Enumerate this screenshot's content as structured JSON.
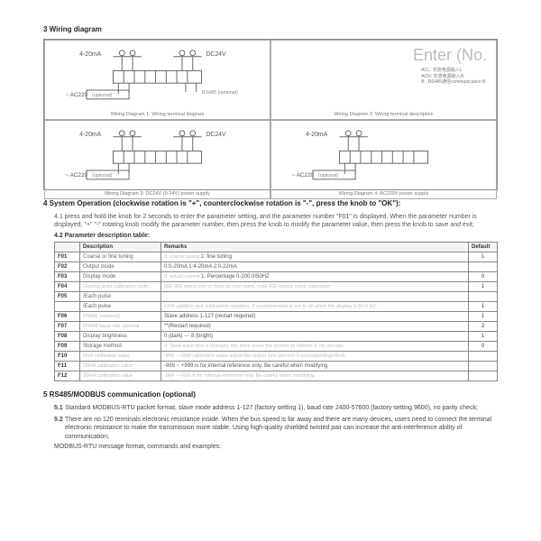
{
  "section3": {
    "heading": "3   Wiring diagram",
    "cells": [
      {
        "cap": "Wiring Diagram 1: Wiring terminal diagram",
        "l1": "4-20mA",
        "l2": "DC24V",
        "l3": "~ AC220",
        "l4": "(optional)",
        "l5": "RS485 (optional)"
      },
      {
        "cap": "Wiring Diagram 2: Wiring terminal description",
        "enter": "Enter (No.",
        "lines": [
          "ACL:  交流电源输入L",
          "ACN:  交流电源输入N",
          "B :  RS485通信communication B-"
        ]
      },
      {
        "cap": "Wiring Diagram 3: DC24V (0-24V) power supply",
        "l1": "4-20mA",
        "l2": "DC24V",
        "l3": "~ AC220",
        "l4": "(optional)"
      },
      {
        "cap": "Wiring Diagram 4: AC220V power supply",
        "l1": "4-20mA",
        "l3": "~ AC220",
        "l4": "(optional)"
      }
    ]
  },
  "section4": {
    "heading": "4   System Operation (clockwise rotation is \"+\", counterclockwise rotation is \"-\", press the knob to \"OK\"):",
    "sub41": "4.1 press and hold the knob for 2 seconds to enter the parameter setting, and the parameter number \"F01\" is displayed. When the parameter number is displayed, \"+\" \"-\" rotating knob modify the parameter number, then press the knob to modify the parameter value, then press the knob to save and exit;",
    "sub42": "4.2   Parameter description table:",
    "table": {
      "headers": [
        "",
        "Description",
        "Remarks",
        "Default"
      ],
      "rows": [
        {
          "code": "F01",
          "desc": "Coarse or fine tuning",
          "rem_dim": "0: coarse tuning   ",
          "rem": "1: fine tuning",
          "def": "1"
        },
        {
          "code": "F02",
          "desc": "Output mode",
          "rem": "0:0-20mA   1:4-20mA   2:0-22mA",
          "def": ""
        },
        {
          "code": "F03",
          "desc": "Display mode",
          "rem_dim": "0: actual current  ",
          "rem": "1: Percentage 0-100.0/50HZ",
          "def": "0"
        },
        {
          "code": "F04",
          "desc_dim": "Starting point calibration code",
          "rem_dim": "000-999 select one of them as start point, code 000 means close calibration",
          "def": "1"
        },
        {
          "code": "F05",
          "desc": "/Each pulse",
          "rem_dim": "",
          "def": ""
        },
        {
          "code": "",
          "desc": "/Each pulse",
          "rem_dim": "x100 addition and subtraction variation. If recommended to set to 10 when the display is 50.0 HZ.",
          "def": "1"
        },
        {
          "code": "F06",
          "desc_dim": "RS485 (optional)",
          "rem": "Slave address 1-127 (restart required)",
          "def": "1"
        },
        {
          "code": "F07",
          "desc_dim": "RS485 baud rate optional",
          "rem": "**(Restart required)",
          "def": "2"
        },
        {
          "code": "F08",
          "desc": "Display brightness",
          "rem": "0 (dark) --- 8 (bright)",
          "def": "1"
        },
        {
          "code": "F09",
          "desc": "Storage method",
          "rem_dim": "0: Store each time it changes, the more times the shorter its lifetime  1: No storage",
          "def": "0"
        },
        {
          "code": "F10",
          "desc_dim": "0mA calibration value",
          "rem_dim": "-999 ~ +999 calibration value  adjust the output zero percent 0 corresponding≈0mA",
          "def": ""
        },
        {
          "code": "F11",
          "desc_dim": "20mA calibration value",
          "rem": "-999 ~ +999 is for internal reference only. Be careful when modifying",
          "def": ""
        },
        {
          "code": "F12",
          "desc_dim": "20mA calibration value",
          "rem_dim": "-999 ~ +999 is for internal reference only. Be careful when modifying",
          "def": ""
        }
      ]
    }
  },
  "section5": {
    "heading": "5   RS485/MODBUS communication (optional)",
    "item51n": "5.1",
    "item51": "Standard MODBUS-RTU packet format, slave mode address 1-127 (factory setting 1), baud rate 2400-57600 (factory setting 9600), no parity check;",
    "item52n": "5.2",
    "item52": "There are no 120 terminals electronic resistance inside. When the bus speed is far away and there are many devices, users need to connect the terminal electronic resistance to make the transmission more stable. Using high-quality shielded twisted pair can increase the anti-interference ability of communication;",
    "modbus": "MODBUS-RTU message format, commands and examples:"
  },
  "colors": {
    "border": "#888888",
    "text": "#333333",
    "dim": "#bbbbbb"
  }
}
